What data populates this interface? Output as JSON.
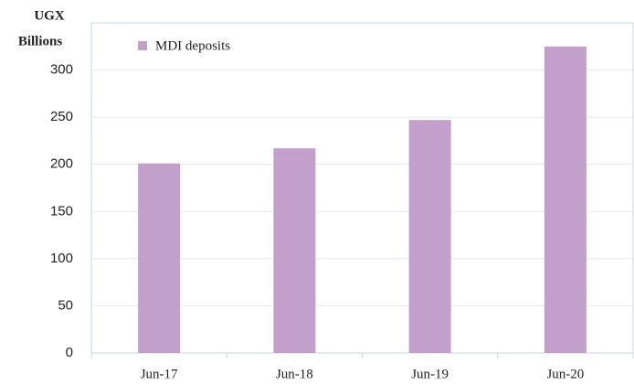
{
  "chart_data": {
    "type": "bar",
    "ylabel": [
      "UGX",
      "Billions"
    ],
    "categories": [
      "Jun-17",
      "Jun-18",
      "Jun-19",
      "Jun-20"
    ],
    "series": [
      {
        "name": "MDI deposits",
        "color": "#c39fcb",
        "values": [
          201,
          217,
          247,
          325
        ]
      }
    ],
    "ylim": [
      0,
      350
    ],
    "yticks": [
      0,
      50,
      100,
      150,
      200,
      250,
      300
    ],
    "grid": true,
    "legend": "top-left"
  }
}
